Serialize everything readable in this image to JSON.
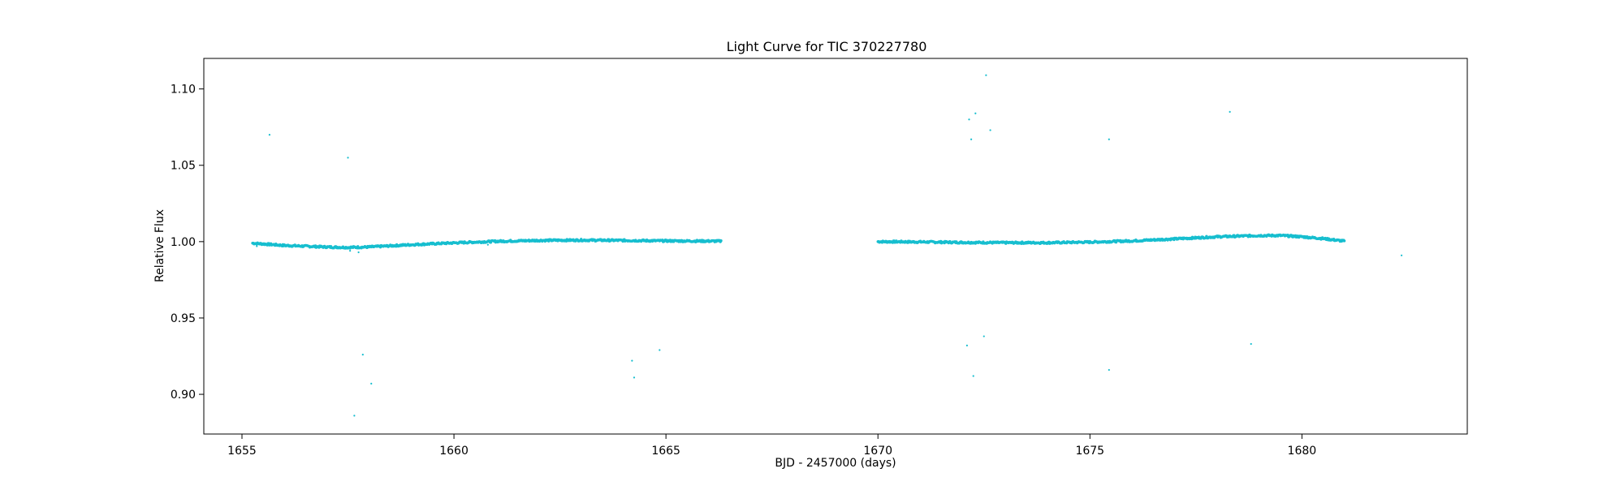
{
  "chart_data": {
    "type": "scatter",
    "title": "Light Curve for TIC 370227780",
    "xlabel": "BJD - 2457000 (days)",
    "ylabel": "Relative Flux",
    "xlim": [
      1654.1,
      1683.9
    ],
    "ylim": [
      0.874,
      1.12
    ],
    "xticks": [
      1655,
      1660,
      1665,
      1670,
      1675,
      1680
    ],
    "yticks": [
      0.9,
      0.95,
      1.0,
      1.05,
      1.1
    ],
    "xtick_labels": [
      "1655",
      "1660",
      "1665",
      "1670",
      "1675",
      "1680"
    ],
    "ytick_labels": [
      "0.90",
      "0.95",
      "1.00",
      "1.05",
      "1.10"
    ],
    "grid": false,
    "point_color": "#17becf",
    "series": [
      {
        "trend_segments": [
          {
            "x": [
              1655.25,
              1656.0,
              1657.0,
              1657.5,
              1658.0,
              1659.0,
              1660.0,
              1661.0,
              1662.0,
              1663.0,
              1664.0,
              1665.0,
              1666.3
            ],
            "y": [
              0.999,
              0.9975,
              0.9965,
              0.9962,
              0.9965,
              0.998,
              0.9992,
              1.0002,
              1.0008,
              1.001,
              1.0008,
              1.0005,
              1.0003
            ]
          },
          {
            "x": [
              1670.0,
              1671.0,
              1672.0,
              1673.0,
              1674.0,
              1675.0,
              1676.0,
              1677.0,
              1678.0,
              1679.0,
              1679.5,
              1680.0,
              1680.5,
              1681.0
            ],
            "y": [
              1.0,
              0.9998,
              0.9995,
              0.9993,
              0.9993,
              0.9997,
              1.0005,
              1.0018,
              1.0032,
              1.004,
              1.004,
              1.0032,
              1.002,
              1.0003
            ]
          }
        ],
        "outliers": {
          "x": [
            1655.65,
            1657.5,
            1657.85,
            1657.65,
            1658.05,
            1664.2,
            1664.25,
            1664.85,
            1660.8,
            1672.15,
            1672.2,
            1672.3,
            1672.55,
            1672.65,
            1672.1,
            1672.25,
            1672.5,
            1675.45,
            1675.45,
            1678.3,
            1678.8,
            1682.35,
            1655.35,
            1657.55,
            1657.75
          ],
          "y": [
            1.07,
            1.055,
            0.926,
            0.886,
            0.907,
            0.922,
            0.911,
            0.929,
            0.998,
            1.08,
            1.067,
            1.084,
            1.109,
            1.073,
            0.932,
            0.912,
            0.938,
            1.067,
            0.916,
            1.085,
            0.933,
            0.991,
            0.997,
            0.994,
            0.993
          ]
        }
      }
    ]
  }
}
